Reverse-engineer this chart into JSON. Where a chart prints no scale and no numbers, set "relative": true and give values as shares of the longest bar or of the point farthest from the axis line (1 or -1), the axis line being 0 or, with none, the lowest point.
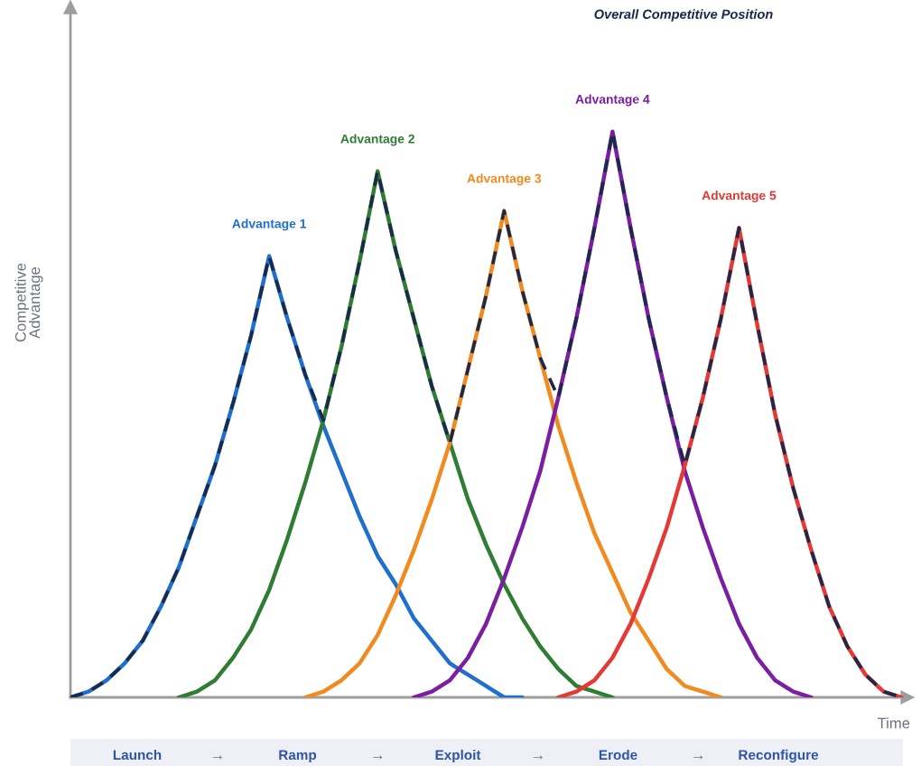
{
  "chart_data": {
    "type": "line",
    "relative": true,
    "xlabel": "Time",
    "ylabel": "Competitive Advantage",
    "categories": [
      null,
      null,
      null,
      null,
      null,
      null,
      null,
      null,
      null,
      null,
      null,
      null,
      null,
      null,
      null,
      null,
      null,
      null,
      null,
      null,
      null,
      null,
      null,
      null,
      null,
      null,
      null,
      null,
      null,
      null,
      null,
      null,
      null,
      null,
      null,
      null,
      null,
      null,
      null,
      null,
      null,
      null,
      null,
      null,
      null,
      null,
      null
    ],
    "series": [
      {
        "name": "Advantage 1",
        "color": "#1f6fce",
        "values": [
          0,
          0.01,
          0.03,
          0.06,
          0.1,
          0.16,
          0.23,
          0.32,
          0.41,
          0.52,
          0.64,
          0.78,
          0.67,
          0.57,
          0.48,
          0.4,
          0.32,
          0.25,
          0.2,
          0.14,
          0.1,
          0.06,
          0.04,
          0.02,
          0,
          0,
          null,
          null,
          null,
          null,
          null,
          null,
          null,
          null,
          null,
          null,
          null,
          null,
          null,
          null,
          null,
          null,
          null,
          null,
          null,
          null,
          null
        ]
      },
      {
        "name": "Advantage 2",
        "color": "#2e7d32",
        "values": [
          null,
          null,
          null,
          null,
          null,
          null,
          0,
          0.01,
          0.03,
          0.07,
          0.12,
          0.19,
          0.28,
          0.38,
          0.49,
          0.62,
          0.77,
          0.93,
          0.79,
          0.67,
          0.55,
          0.45,
          0.35,
          0.27,
          0.2,
          0.14,
          0.09,
          0.05,
          0.02,
          0.01,
          0,
          null,
          null,
          null,
          null,
          null,
          null,
          null,
          null,
          null,
          null,
          null,
          null,
          null,
          null,
          null,
          null
        ]
      },
      {
        "name": "Advantage 3",
        "color": "#f28a1f",
        "values": [
          null,
          null,
          null,
          null,
          null,
          null,
          null,
          null,
          null,
          null,
          null,
          null,
          null,
          0,
          0.01,
          0.03,
          0.06,
          0.11,
          0.18,
          0.26,
          0.35,
          0.45,
          0.58,
          0.71,
          0.86,
          0.72,
          0.6,
          0.48,
          0.38,
          0.29,
          0.22,
          0.15,
          0.1,
          0.05,
          0.02,
          0.01,
          0,
          null,
          null,
          null,
          null,
          null,
          null,
          null,
          null,
          null,
          null
        ]
      },
      {
        "name": "Advantage 4",
        "color": "#7b1fa2",
        "values": [
          null,
          null,
          null,
          null,
          null,
          null,
          null,
          null,
          null,
          null,
          null,
          null,
          null,
          null,
          null,
          null,
          null,
          null,
          null,
          0,
          0.01,
          0.03,
          0.07,
          0.13,
          0.21,
          0.3,
          0.4,
          0.53,
          0.67,
          0.83,
          1.0,
          0.83,
          0.67,
          0.53,
          0.4,
          0.3,
          0.21,
          0.13,
          0.07,
          0.03,
          0.01,
          0,
          null,
          null,
          null,
          null,
          null
        ]
      },
      {
        "name": "Advantage 5",
        "color": "#e53935",
        "values": [
          null,
          null,
          null,
          null,
          null,
          null,
          null,
          null,
          null,
          null,
          null,
          null,
          null,
          null,
          null,
          null,
          null,
          null,
          null,
          null,
          null,
          null,
          null,
          null,
          null,
          null,
          null,
          0,
          0.01,
          0.03,
          0.07,
          0.13,
          0.21,
          0.3,
          0.41,
          0.53,
          0.67,
          0.83,
          0.66,
          0.5,
          0.37,
          0.26,
          0.16,
          0.09,
          0.04,
          0.01,
          0
        ]
      },
      {
        "color": "#1b2a4a",
        "line_style": "dashed",
        "values": [
          0,
          0.01,
          0.03,
          0.06,
          0.1,
          0.16,
          0.23,
          0.32,
          0.41,
          0.52,
          0.64,
          0.78,
          0.67,
          0.57,
          0.49,
          0.62,
          0.77,
          0.93,
          0.79,
          0.67,
          0.55,
          0.45,
          0.58,
          0.71,
          0.86,
          0.72,
          0.6,
          0.53,
          0.67,
          0.83,
          1.0,
          0.83,
          0.67,
          0.53,
          0.41,
          0.53,
          0.67,
          0.83,
          0.66,
          0.5,
          0.37,
          0.26,
          0.16,
          0.09,
          0.04,
          0.01,
          0
        ]
      }
    ],
    "annotations": [
      "Overall Competitive Position",
      "Launch",
      "→",
      "Ramp",
      "→",
      "Exploit",
      "→",
      "Erode",
      "→",
      "Reconfigure"
    ],
    "legend": false,
    "marker": "none",
    "line_style": "solid"
  }
}
